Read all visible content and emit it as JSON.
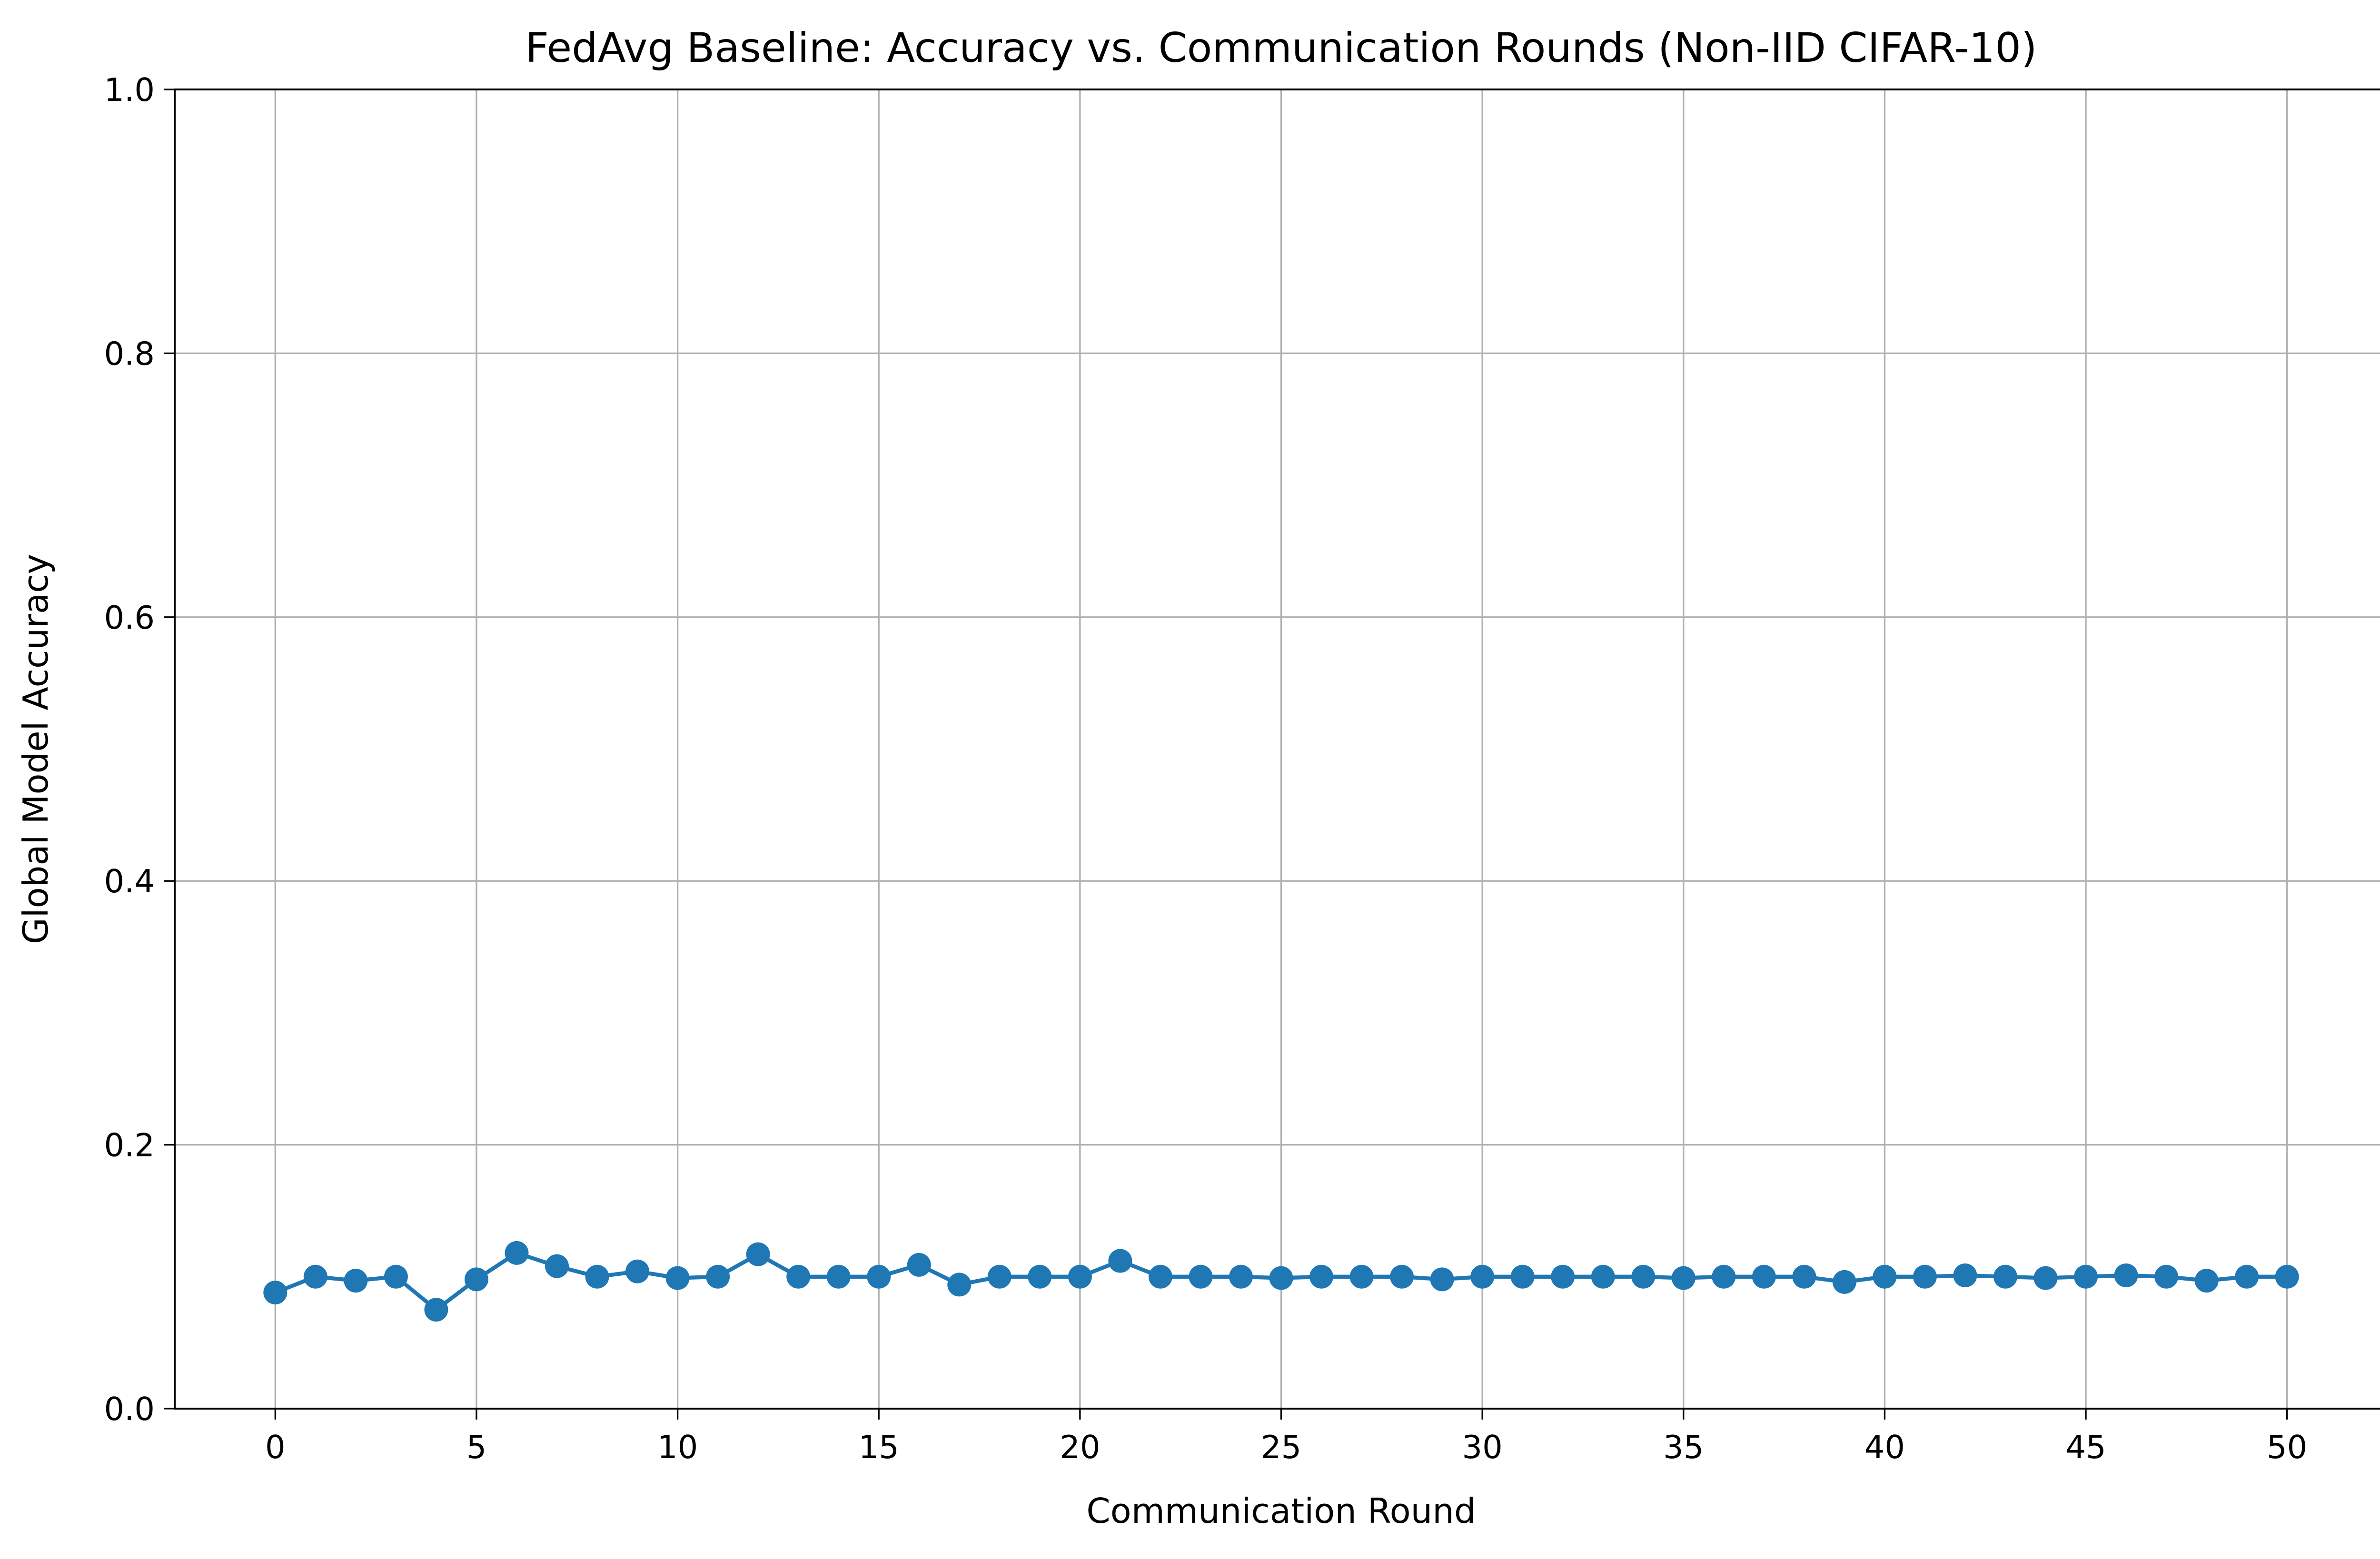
{
  "chart_data": {
    "type": "line",
    "title": "FedAvg Baseline: Accuracy vs. Communication Rounds (Non-IID CIFAR-10)",
    "xlabel": "Communication Round",
    "ylabel": "Global Model Accuracy",
    "xlim": [
      -2.5,
      52.5
    ],
    "ylim": [
      0.0,
      1.0
    ],
    "xticks": [
      0,
      5,
      10,
      15,
      20,
      25,
      30,
      35,
      40,
      45,
      50
    ],
    "yticks": [
      0.0,
      0.2,
      0.4,
      0.6,
      0.8,
      1.0
    ],
    "xtick_labels": [
      "0",
      "5",
      "10",
      "15",
      "20",
      "25",
      "30",
      "35",
      "40",
      "45",
      "50"
    ],
    "ytick_labels": [
      "0.0",
      "0.2",
      "0.4",
      "0.6",
      "0.8",
      "1.0"
    ],
    "grid": true,
    "marker": "circle",
    "color": "#1f77b4",
    "x": [
      0,
      1,
      2,
      3,
      4,
      5,
      6,
      7,
      8,
      9,
      10,
      11,
      12,
      13,
      14,
      15,
      16,
      17,
      18,
      19,
      20,
      21,
      22,
      23,
      24,
      25,
      26,
      27,
      28,
      29,
      30,
      31,
      32,
      33,
      34,
      35,
      36,
      37,
      38,
      39,
      40,
      41,
      42,
      43,
      44,
      45,
      46,
      47,
      48,
      49,
      50
    ],
    "series": [
      {
        "values": [
          0.088,
          0.1,
          0.097,
          0.1,
          0.075,
          0.098,
          0.118,
          0.108,
          0.1,
          0.104,
          0.099,
          0.1,
          0.117,
          0.1,
          0.1,
          0.1,
          0.109,
          0.094,
          0.1,
          0.1,
          0.1,
          0.112,
          0.1,
          0.1,
          0.1,
          0.099,
          0.1,
          0.1,
          0.1,
          0.098,
          0.1,
          0.1,
          0.1,
          0.1,
          0.1,
          0.099,
          0.1,
          0.1,
          0.1,
          0.096,
          0.1,
          0.1,
          0.101,
          0.1,
          0.099,
          0.1,
          0.101,
          0.1,
          0.097,
          0.1,
          0.1
        ]
      }
    ]
  }
}
